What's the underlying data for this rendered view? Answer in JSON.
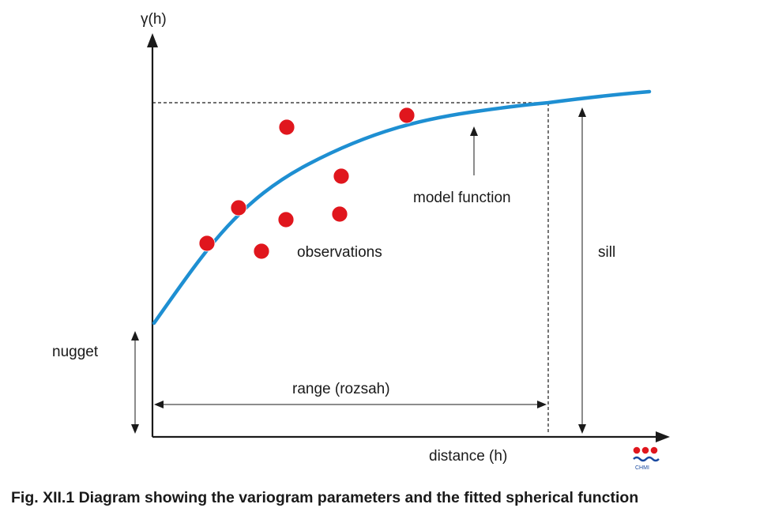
{
  "diagram": {
    "y_axis_label": "γ(h)",
    "x_axis_label": "distance (h)",
    "labels": {
      "model_function": "model function",
      "observations": "observations",
      "sill": "sill",
      "nugget": "nugget",
      "range": "range (rozsah)"
    },
    "logo_text": "CHMI",
    "observation_count": 8,
    "colors": {
      "curve": "#1e8fd2",
      "points": "#e0161d",
      "axes": "#1a1a1a",
      "logo": "#1a4aa0"
    }
  },
  "caption": "Fig. XII.1  Diagram showing the variogram parameters and the fitted spherical function"
}
